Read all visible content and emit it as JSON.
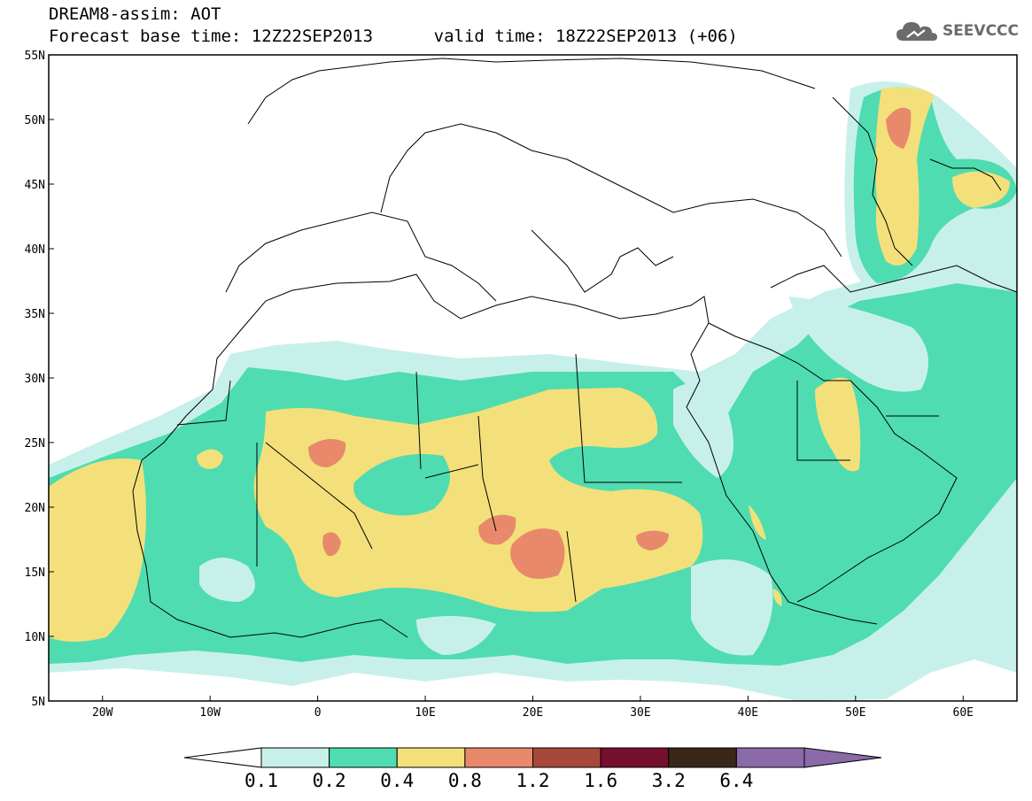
{
  "header": {
    "line1": "DREAM8-assim: AOT",
    "line2": "Forecast base time: 12Z22SEP2013      valid time: 18Z22SEP2013 (+06)"
  },
  "logo": {
    "text": "SEEVCCC",
    "icon": "cloud-icon"
  },
  "map": {
    "lat_labels": [
      "55N",
      "50N",
      "45N",
      "40N",
      "35N",
      "30N",
      "25N",
      "20N",
      "15N",
      "10N",
      "5N"
    ],
    "lon_labels": [
      "20W",
      "10W",
      "0",
      "10E",
      "20E",
      "30E",
      "40E",
      "50E",
      "60E"
    ],
    "lat_range": [
      5,
      55
    ],
    "lon_range": [
      -25,
      65
    ]
  },
  "colorbar": {
    "labels": [
      "0.1",
      "0.2",
      "0.4",
      "0.8",
      "1.2",
      "1.6",
      "3.2",
      "6.4"
    ],
    "colors": [
      "#ffffff",
      "#c8f0ea",
      "#4fdcb0",
      "#f3e07a",
      "#e8896b",
      "#a8483b",
      "#750f2d",
      "#3a2717",
      "#8a6aa8"
    ]
  }
}
